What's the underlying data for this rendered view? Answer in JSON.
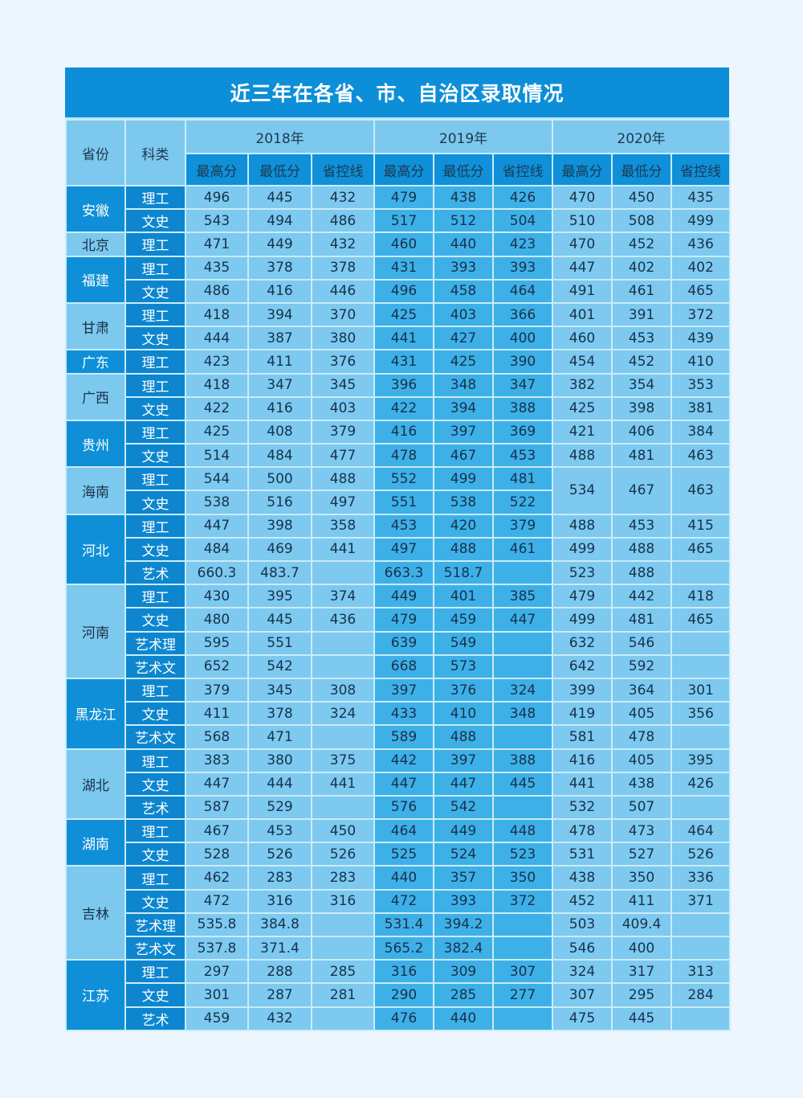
{
  "title": "近三年在各省、市、自治区录取情况",
  "header": {
    "province": "省份",
    "category": "科类",
    "years": [
      "2018年",
      "2019年",
      "2020年"
    ],
    "subcols": [
      "最高分",
      "最低分",
      "省控线"
    ]
  },
  "colors": {
    "title_bg": "#0d8ed8",
    "province_dark": "#0f8fd7",
    "province_light": "#7cc8ee",
    "category_bg": "#0d86cf",
    "col_light": "#7dc9ef",
    "col_mid": "#3eb0e8"
  },
  "provinces": [
    {
      "name": "安徽",
      "shade": "dark",
      "rows": [
        {
          "cat": "理工",
          "v": [
            "496",
            "445",
            "432",
            "479",
            "438",
            "426",
            "470",
            "450",
            "435"
          ]
        },
        {
          "cat": "文史",
          "v": [
            "543",
            "494",
            "486",
            "517",
            "512",
            "504",
            "510",
            "508",
            "499"
          ]
        }
      ]
    },
    {
      "name": "北京",
      "shade": "light",
      "rows": [
        {
          "cat": "理工",
          "v": [
            "471",
            "449",
            "432",
            "460",
            "440",
            "423",
            "470",
            "452",
            "436"
          ]
        }
      ]
    },
    {
      "name": "福建",
      "shade": "dark",
      "rows": [
        {
          "cat": "理工",
          "v": [
            "435",
            "378",
            "378",
            "431",
            "393",
            "393",
            "447",
            "402",
            "402"
          ]
        },
        {
          "cat": "文史",
          "v": [
            "486",
            "416",
            "446",
            "496",
            "458",
            "464",
            "491",
            "461",
            "465"
          ]
        }
      ]
    },
    {
      "name": "甘肃",
      "shade": "light",
      "rows": [
        {
          "cat": "理工",
          "v": [
            "418",
            "394",
            "370",
            "425",
            "403",
            "366",
            "401",
            "391",
            "372"
          ]
        },
        {
          "cat": "文史",
          "v": [
            "444",
            "387",
            "380",
            "441",
            "427",
            "400",
            "460",
            "453",
            "439"
          ]
        }
      ]
    },
    {
      "name": "广东",
      "shade": "dark",
      "rows": [
        {
          "cat": "理工",
          "v": [
            "423",
            "411",
            "376",
            "431",
            "425",
            "390",
            "454",
            "452",
            "410"
          ]
        }
      ]
    },
    {
      "name": "广西",
      "shade": "light",
      "rows": [
        {
          "cat": "理工",
          "v": [
            "418",
            "347",
            "345",
            "396",
            "348",
            "347",
            "382",
            "354",
            "353"
          ]
        },
        {
          "cat": "文史",
          "v": [
            "422",
            "416",
            "403",
            "422",
            "394",
            "388",
            "425",
            "398",
            "381"
          ]
        }
      ]
    },
    {
      "name": "贵州",
      "shade": "dark",
      "rows": [
        {
          "cat": "理工",
          "v": [
            "425",
            "408",
            "379",
            "416",
            "397",
            "369",
            "421",
            "406",
            "384"
          ]
        },
        {
          "cat": "文史",
          "v": [
            "514",
            "484",
            "477",
            "478",
            "467",
            "453",
            "488",
            "481",
            "463"
          ]
        }
      ]
    },
    {
      "name": "海南",
      "shade": "light",
      "merged2020": [
        "534",
        "467",
        "463"
      ],
      "rows": [
        {
          "cat": "理工",
          "v": [
            "544",
            "500",
            "488",
            "552",
            "499",
            "481"
          ]
        },
        {
          "cat": "文史",
          "v": [
            "538",
            "516",
            "497",
            "551",
            "538",
            "522"
          ]
        }
      ]
    },
    {
      "name": "河北",
      "shade": "dark",
      "rows": [
        {
          "cat": "理工",
          "v": [
            "447",
            "398",
            "358",
            "453",
            "420",
            "379",
            "488",
            "453",
            "415"
          ]
        },
        {
          "cat": "文史",
          "v": [
            "484",
            "469",
            "441",
            "497",
            "488",
            "461",
            "499",
            "488",
            "465"
          ]
        },
        {
          "cat": "艺术",
          "v": [
            "660.3",
            "483.7",
            "",
            "663.3",
            "518.7",
            "",
            "523",
            "488",
            ""
          ]
        }
      ]
    },
    {
      "name": "河南",
      "shade": "light",
      "rows": [
        {
          "cat": "理工",
          "v": [
            "430",
            "395",
            "374",
            "449",
            "401",
            "385",
            "479",
            "442",
            "418"
          ]
        },
        {
          "cat": "文史",
          "v": [
            "480",
            "445",
            "436",
            "479",
            "459",
            "447",
            "499",
            "481",
            "465"
          ]
        },
        {
          "cat": "艺术理",
          "v": [
            "595",
            "551",
            "",
            "639",
            "549",
            "",
            "632",
            "546",
            ""
          ]
        },
        {
          "cat": "艺术文",
          "v": [
            "652",
            "542",
            "",
            "668",
            "573",
            "",
            "642",
            "592",
            ""
          ]
        }
      ]
    },
    {
      "name": "黑龙江",
      "shade": "dark",
      "rows": [
        {
          "cat": "理工",
          "v": [
            "379",
            "345",
            "308",
            "397",
            "376",
            "324",
            "399",
            "364",
            "301"
          ]
        },
        {
          "cat": "文史",
          "v": [
            "411",
            "378",
            "324",
            "433",
            "410",
            "348",
            "419",
            "405",
            "356"
          ]
        },
        {
          "cat": "艺术文",
          "v": [
            "568",
            "471",
            "",
            "589",
            "488",
            "",
            "581",
            "478",
            ""
          ]
        }
      ]
    },
    {
      "name": "湖北",
      "shade": "light",
      "rows": [
        {
          "cat": "理工",
          "v": [
            "383",
            "380",
            "375",
            "442",
            "397",
            "388",
            "416",
            "405",
            "395"
          ]
        },
        {
          "cat": "文史",
          "v": [
            "447",
            "444",
            "441",
            "447",
            "447",
            "445",
            "441",
            "438",
            "426"
          ]
        },
        {
          "cat": "艺术",
          "v": [
            "587",
            "529",
            "",
            "576",
            "542",
            "",
            "532",
            "507",
            ""
          ]
        }
      ]
    },
    {
      "name": "湖南",
      "shade": "dark",
      "rows": [
        {
          "cat": "理工",
          "v": [
            "467",
            "453",
            "450",
            "464",
            "449",
            "448",
            "478",
            "473",
            "464"
          ]
        },
        {
          "cat": "文史",
          "v": [
            "528",
            "526",
            "526",
            "525",
            "524",
            "523",
            "531",
            "527",
            "526"
          ]
        }
      ]
    },
    {
      "name": "吉林",
      "shade": "light",
      "rows": [
        {
          "cat": "理工",
          "v": [
            "462",
            "283",
            "283",
            "440",
            "357",
            "350",
            "438",
            "350",
            "336"
          ]
        },
        {
          "cat": "文史",
          "v": [
            "472",
            "316",
            "316",
            "472",
            "393",
            "372",
            "452",
            "411",
            "371"
          ]
        },
        {
          "cat": "艺术理",
          "v": [
            "535.8",
            "384.8",
            "",
            "531.4",
            "394.2",
            "",
            "503",
            "409.4",
            ""
          ]
        },
        {
          "cat": "艺术文",
          "v": [
            "537.8",
            "371.4",
            "",
            "565.2",
            "382.4",
            "",
            "546",
            "400",
            ""
          ]
        }
      ]
    },
    {
      "name": "江苏",
      "shade": "dark",
      "rows": [
        {
          "cat": "理工",
          "v": [
            "297",
            "288",
            "285",
            "316",
            "309",
            "307",
            "324",
            "317",
            "313"
          ]
        },
        {
          "cat": "文史",
          "v": [
            "301",
            "287",
            "281",
            "290",
            "285",
            "277",
            "307",
            "295",
            "284"
          ]
        },
        {
          "cat": "艺术",
          "v": [
            "459",
            "432",
            "",
            "476",
            "440",
            "",
            "475",
            "445",
            ""
          ]
        }
      ]
    }
  ]
}
